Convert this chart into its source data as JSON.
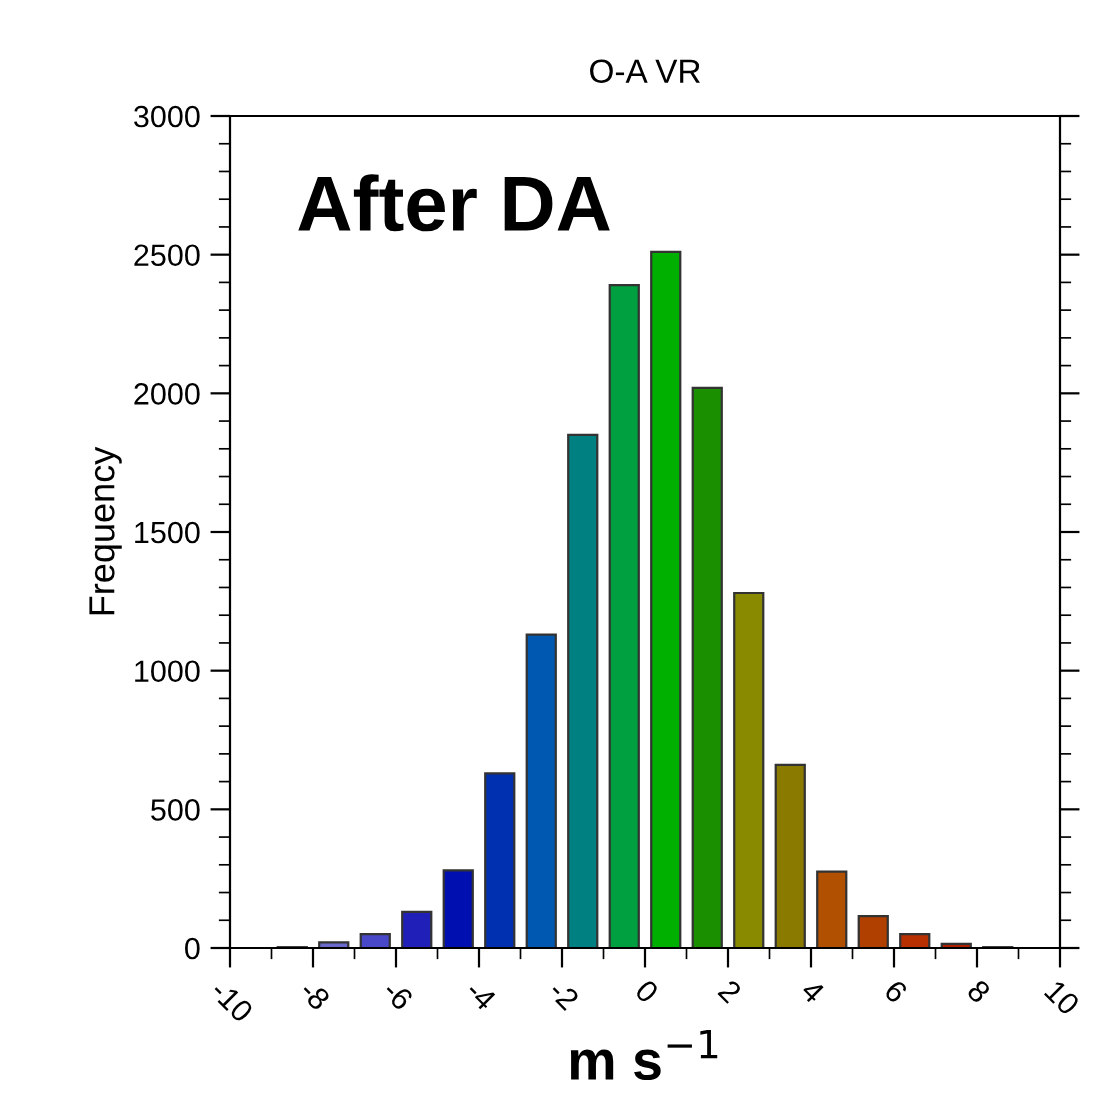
{
  "chart_data": {
    "type": "histogram",
    "title": "O-A VR",
    "xlabel": "m s$^{−1}$",
    "ylabel": "Frequency",
    "annotations": [
      "After DA"
    ],
    "bins": [
      -9,
      -8,
      -7,
      -6,
      -5,
      -4,
      -3,
      -2,
      -1,
      0,
      1,
      2,
      3,
      4,
      5,
      6,
      7,
      8,
      9
    ],
    "values": [
      3,
      20,
      50,
      130,
      280,
      630,
      1130,
      1850,
      2390,
      2510,
      2020,
      1280,
      660,
      275,
      115,
      50,
      15,
      3
    ],
    "colors": [
      "#333366",
      "#6a6acd",
      "#4848c8",
      "#2020b8",
      "#0010b0",
      "#0030b0",
      "#0058b0",
      "#008080",
      "#00a040",
      "#00b000",
      "#1a9000",
      "#8a8a00",
      "#8a7a00",
      "#b05000",
      "#b04000",
      "#b83000",
      "#b02000",
      "#800000"
    ],
    "xlim": [
      -10,
      10
    ],
    "xticks": [
      -10,
      -8,
      -6,
      -4,
      -2,
      0,
      2,
      4,
      6,
      8,
      10
    ],
    "ylim": [
      0,
      3000
    ],
    "yticks": [
      0,
      500,
      1000,
      1500,
      2000,
      2500,
      3000
    ],
    "grid": false
  }
}
